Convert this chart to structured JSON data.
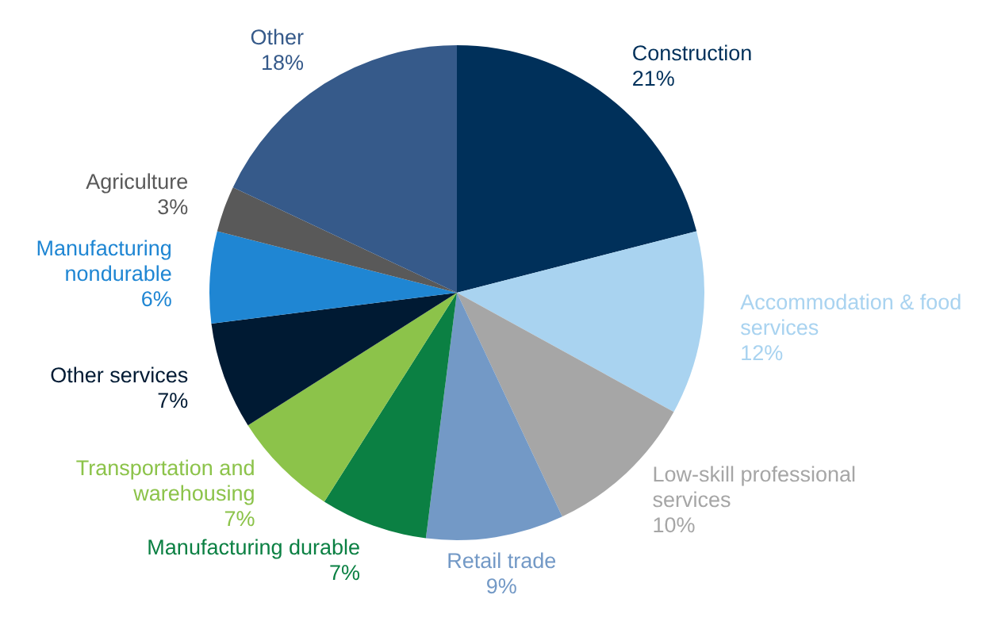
{
  "chart_data": {
    "type": "pie",
    "categories": [
      "Construction",
      "Accommodation & food services",
      "Low-skill professional services",
      "Retail trade",
      "Manufacturing durable",
      "Transportation and warehousing",
      "Other services",
      "Manufacturing nondurable",
      "Agriculture",
      "Other"
    ],
    "values": [
      21,
      12,
      10,
      9,
      7,
      7,
      7,
      6,
      3,
      18
    ],
    "colors": [
      "#00305a",
      "#a9d3f0",
      "#a6a6a6",
      "#7399c6",
      "#0b8043",
      "#8cc34a",
      "#001a33",
      "#1f86d3",
      "#595959",
      "#365a8a"
    ],
    "value_labels": [
      "21%",
      "12%",
      "10%",
      "9%",
      "7%",
      "7%",
      "7%",
      "6%",
      "3%",
      "18%"
    ],
    "legend": false
  }
}
